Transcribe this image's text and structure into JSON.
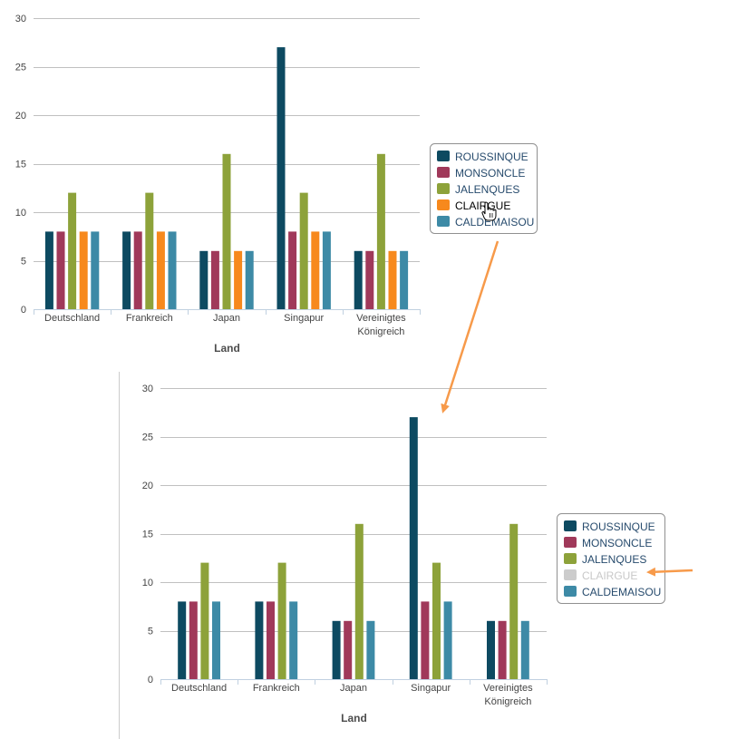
{
  "annotation": {
    "arrow_color": "#f79a4a"
  },
  "chart_data": [
    {
      "type": "bar",
      "state": "before",
      "categories": [
        "Deutschland",
        "Frankreich",
        "Japan",
        "Singapur",
        "Vereinigtes Königreich"
      ],
      "category_lines": [
        [
          "Deutschland"
        ],
        [
          "Frankreich"
        ],
        [
          "Japan"
        ],
        [
          "Singapur"
        ],
        [
          "Vereinigtes",
          "Königreich"
        ]
      ],
      "series": [
        {
          "name": "ROUSSINQUE",
          "color": "#0d4a61",
          "visible": true,
          "values": [
            8,
            8,
            6,
            27,
            6
          ]
        },
        {
          "name": "MONSONCLE",
          "color": "#a0395a",
          "visible": true,
          "values": [
            8,
            8,
            6,
            8,
            6
          ]
        },
        {
          "name": "JALENQUES",
          "color": "#8da23a",
          "visible": true,
          "values": [
            12,
            12,
            16,
            12,
            16
          ]
        },
        {
          "name": "CLAIRGUE",
          "color": "#f7891d",
          "visible": true,
          "hovered": true,
          "values": [
            8,
            8,
            6,
            8,
            6
          ]
        },
        {
          "name": "CALDEMAISOU",
          "color": "#3d8aa6",
          "visible": true,
          "values": [
            8,
            8,
            6,
            8,
            6
          ]
        }
      ],
      "ylim": [
        0,
        30
      ],
      "yticks": [
        0,
        5,
        10,
        15,
        20,
        25,
        30
      ],
      "grid": true,
      "xlabel": "Land",
      "ylabel": "",
      "legend_position": "right"
    },
    {
      "type": "bar",
      "state": "after",
      "categories": [
        "Deutschland",
        "Frankreich",
        "Japan",
        "Singapur",
        "Vereinigtes Königreich"
      ],
      "category_lines": [
        [
          "Deutschland"
        ],
        [
          "Frankreich"
        ],
        [
          "Japan"
        ],
        [
          "Singapur"
        ],
        [
          "Vereinigtes",
          "Königreich"
        ]
      ],
      "series": [
        {
          "name": "ROUSSINQUE",
          "color": "#0d4a61",
          "visible": true,
          "values": [
            8,
            8,
            6,
            27,
            6
          ]
        },
        {
          "name": "MONSONCLE",
          "color": "#a0395a",
          "visible": true,
          "values": [
            8,
            8,
            6,
            8,
            6
          ]
        },
        {
          "name": "JALENQUES",
          "color": "#8da23a",
          "visible": true,
          "values": [
            12,
            12,
            16,
            12,
            16
          ]
        },
        {
          "name": "CLAIRGUE",
          "color": "#f7891d",
          "visible": false,
          "values": [
            8,
            8,
            6,
            8,
            6
          ]
        },
        {
          "name": "CALDEMAISOU",
          "color": "#3d8aa6",
          "visible": true,
          "values": [
            8,
            8,
            6,
            8,
            6
          ]
        }
      ],
      "ylim": [
        0,
        30
      ],
      "yticks": [
        0,
        5,
        10,
        15,
        20,
        25,
        30
      ],
      "grid": true,
      "xlabel": "Land",
      "ylabel": "",
      "legend_position": "right"
    }
  ]
}
